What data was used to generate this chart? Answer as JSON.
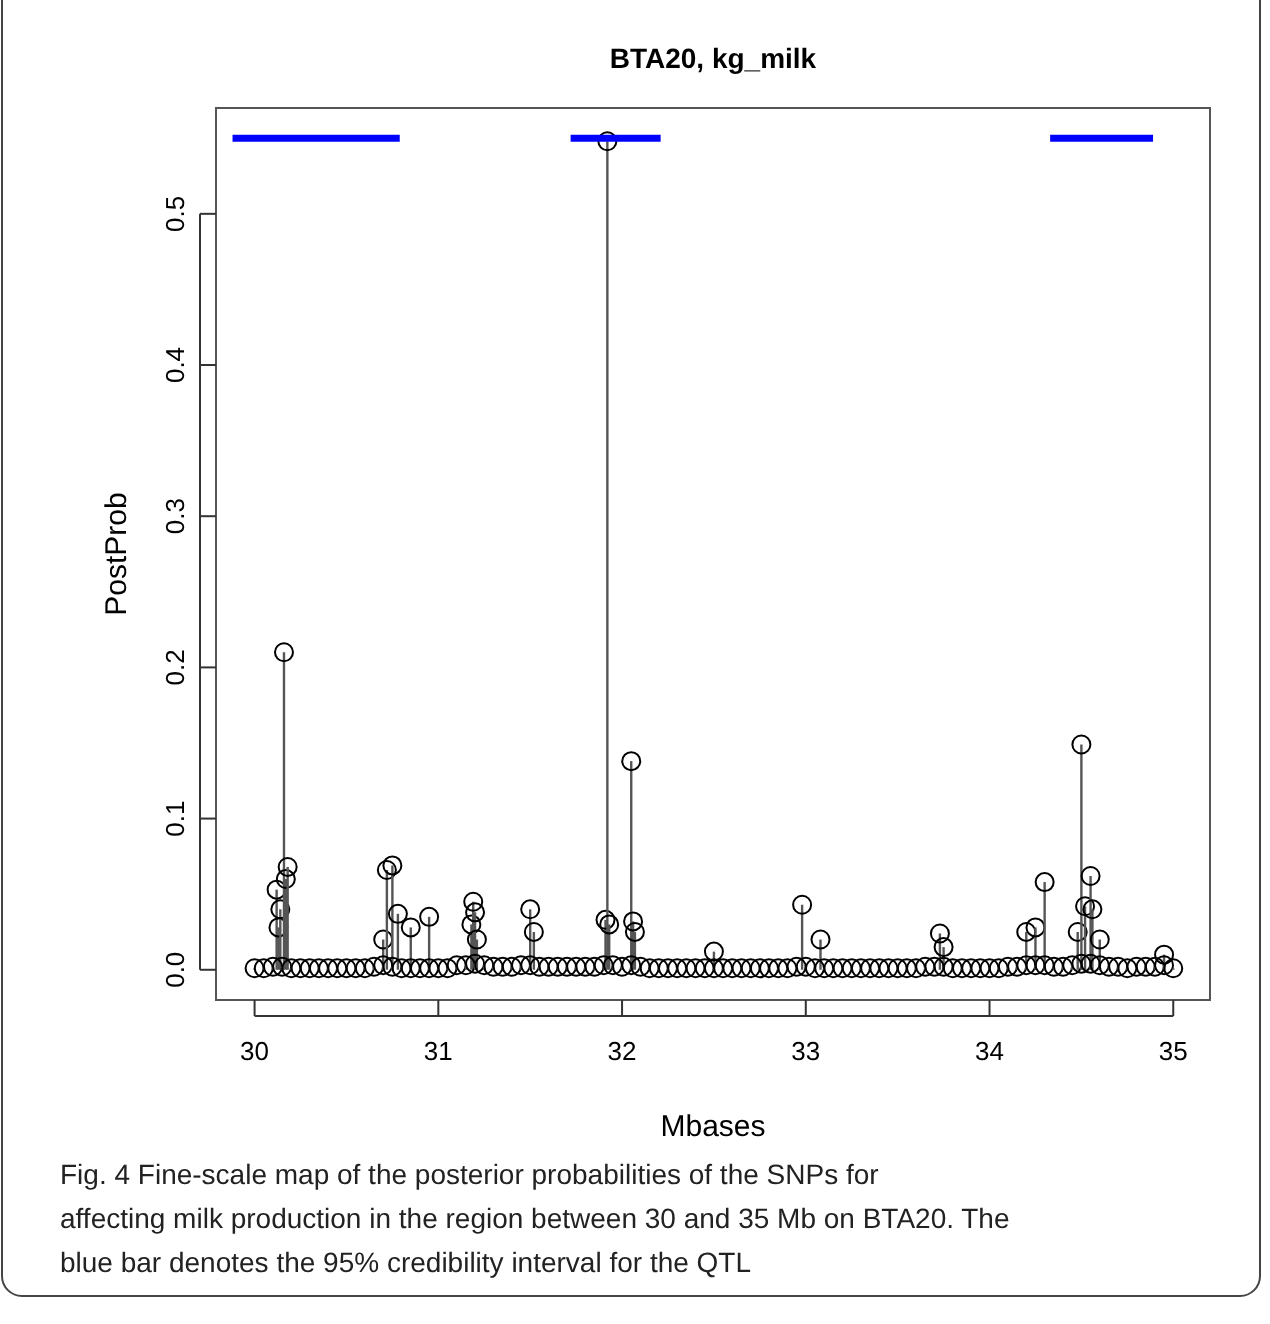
{
  "chart_data": {
    "type": "lollipop",
    "title": "BTA20, kg_milk",
    "xlabel": "Mbases",
    "ylabel": "PostProb",
    "xlim": [
      29.79,
      35.2
    ],
    "xticks": [
      30,
      31,
      32,
      33,
      34,
      35
    ],
    "ylim": [
      -0.02,
      0.57
    ],
    "yticks": [
      {
        "value": 0,
        "label": "0.0"
      },
      0.1,
      0.2,
      0.3,
      0.4,
      0.5
    ],
    "marker": "circle",
    "annotations": [
      "Fig. 4  Fine-scale map of the posterior probabilities of the SNPs for affecting milk production in the region between 30 and 35 Mb on BTA20. The blue bar denotes the 95% credibility interval for the QTL"
    ],
    "series": [
      {
        "color": "#000000",
        "x": [
          30.12,
          30.13,
          30.14,
          30.16,
          30.17,
          30.18,
          30.7,
          30.72,
          30.75,
          30.78,
          30.85,
          30.95,
          31.18,
          31.19,
          31.2,
          31.21,
          31.5,
          31.52,
          31.91,
          31.92,
          31.93,
          32.05,
          32.06,
          32.07,
          32.5,
          32.98,
          33.08,
          33.73,
          33.75,
          34.2,
          34.25,
          34.3,
          34.48,
          34.5,
          34.52,
          34.55,
          34.56,
          34.6,
          34.95
        ],
        "values": [
          0.053,
          0.028,
          0.04,
          0.21,
          0.06,
          0.068,
          0.02,
          0.066,
          0.069,
          0.037,
          0.028,
          0.035,
          0.03,
          0.045,
          0.038,
          0.02,
          0.04,
          0.025,
          0.033,
          0.548,
          0.03,
          0.138,
          0.032,
          0.025,
          0.012,
          0.043,
          0.02,
          0.024,
          0.015,
          0.025,
          0.028,
          0.058,
          0.025,
          0.149,
          0.042,
          0.062,
          0.04,
          0.02,
          0.01
        ]
      },
      {
        "color": "#000000",
        "x": [
          30.0,
          30.05,
          30.1,
          30.15,
          30.2,
          30.25,
          30.3,
          30.35,
          30.4,
          30.45,
          30.5,
          30.55,
          30.6,
          30.65,
          30.7,
          30.75,
          30.8,
          30.85,
          30.9,
          30.95,
          31.0,
          31.05,
          31.1,
          31.15,
          31.2,
          31.25,
          31.3,
          31.35,
          31.4,
          31.45,
          31.5,
          31.55,
          31.6,
          31.65,
          31.7,
          31.75,
          31.8,
          31.85,
          31.9,
          31.95,
          32.0,
          32.05,
          32.1,
          32.15,
          32.2,
          32.25,
          32.3,
          32.35,
          32.4,
          32.45,
          32.5,
          32.55,
          32.6,
          32.65,
          32.7,
          32.75,
          32.8,
          32.85,
          32.9,
          32.95,
          33.0,
          33.05,
          33.1,
          33.15,
          33.2,
          33.25,
          33.3,
          33.35,
          33.4,
          33.45,
          33.5,
          33.55,
          33.6,
          33.65,
          33.7,
          33.75,
          33.8,
          33.85,
          33.9,
          33.95,
          34.0,
          34.05,
          34.1,
          34.15,
          34.2,
          34.25,
          34.3,
          34.35,
          34.4,
          34.45,
          34.5,
          34.55,
          34.6,
          34.65,
          34.7,
          34.75,
          34.8,
          34.85,
          34.9,
          34.95,
          35.0
        ],
        "values": [
          0.001,
          0.001,
          0.002,
          0.002,
          0.001,
          0.001,
          0.001,
          0.001,
          0.001,
          0.001,
          0.001,
          0.001,
          0.001,
          0.002,
          0.003,
          0.002,
          0.001,
          0.001,
          0.001,
          0.001,
          0.001,
          0.001,
          0.003,
          0.003,
          0.004,
          0.003,
          0.002,
          0.002,
          0.002,
          0.003,
          0.003,
          0.002,
          0.002,
          0.002,
          0.002,
          0.002,
          0.002,
          0.002,
          0.003,
          0.003,
          0.002,
          0.003,
          0.002,
          0.001,
          0.001,
          0.001,
          0.001,
          0.001,
          0.001,
          0.001,
          0.001,
          0.001,
          0.001,
          0.001,
          0.001,
          0.001,
          0.001,
          0.001,
          0.001,
          0.002,
          0.002,
          0.001,
          0.001,
          0.001,
          0.001,
          0.001,
          0.001,
          0.001,
          0.001,
          0.001,
          0.001,
          0.001,
          0.001,
          0.002,
          0.002,
          0.002,
          0.001,
          0.001,
          0.001,
          0.001,
          0.001,
          0.001,
          0.002,
          0.002,
          0.003,
          0.003,
          0.003,
          0.002,
          0.002,
          0.003,
          0.004,
          0.004,
          0.003,
          0.002,
          0.002,
          0.001,
          0.002,
          0.002,
          0.002,
          0.003,
          0.001
        ]
      },
      {
        "type": "line",
        "marker": "none",
        "color": "#0000ff",
        "x": [
          29.88,
          30.79
        ],
        "values": [
          0.55,
          0.55
        ]
      },
      {
        "type": "line",
        "marker": "none",
        "color": "#0000ff",
        "x": [
          31.72,
          32.21
        ],
        "values": [
          0.55,
          0.55
        ]
      },
      {
        "type": "line",
        "marker": "none",
        "color": "#0000ff",
        "x": [
          34.33,
          34.89
        ],
        "values": [
          0.55,
          0.55
        ]
      }
    ]
  }
}
